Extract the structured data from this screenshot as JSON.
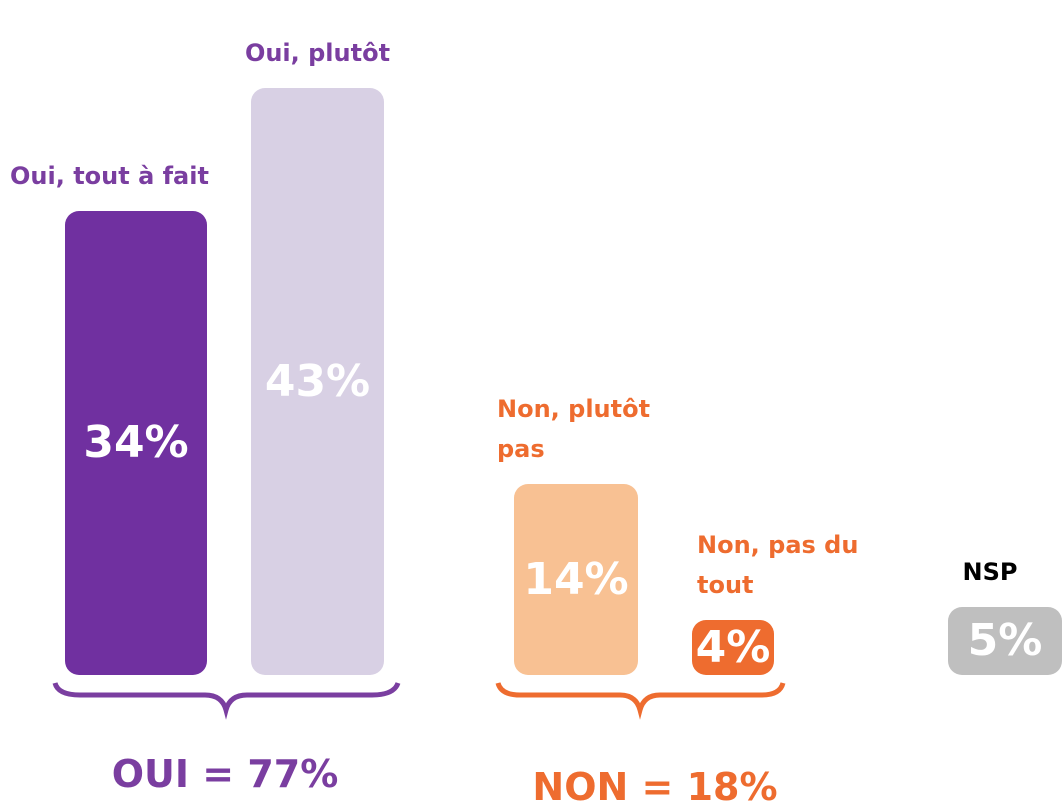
{
  "chart_data": {
    "type": "bar",
    "categories": [
      "Oui, tout à fait",
      "Oui, plutôt",
      "Non, plutôt pas",
      "Non, pas du tout",
      "NSP"
    ],
    "values": [
      34,
      43,
      14,
      4,
      5
    ],
    "value_labels": [
      "34%",
      "43%",
      "14%",
      "4%",
      "5%"
    ],
    "colors": [
      "#7030a0",
      "#d8d0e4",
      "#f8c193",
      "#ee6c2f",
      "#bfbfbf"
    ],
    "label_colors": [
      "#7a3ea0",
      "#7a3ea0",
      "#ee6c2f",
      "#ee6c2f",
      "#000000"
    ],
    "ylim": [
      0,
      43
    ],
    "annotations": [
      {
        "text": "OUI = 77%",
        "color": "#7a3ea0"
      },
      {
        "text": "NON = 18%",
        "color": "#ee6c2f"
      }
    ]
  }
}
